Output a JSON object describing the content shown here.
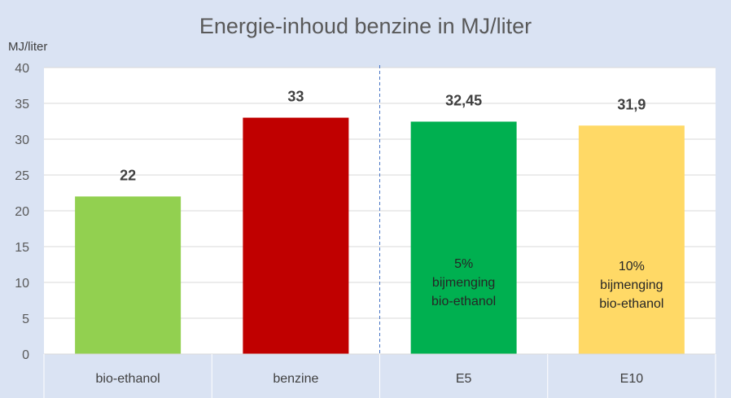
{
  "chart_data": {
    "type": "bar",
    "title": "Energie-inhoud benzine in MJ/liter",
    "ylabel": "MJ/liter",
    "xlabel": "",
    "ylim": [
      0,
      40
    ],
    "yticks": [
      0,
      5,
      10,
      15,
      20,
      25,
      30,
      35,
      40
    ],
    "grid": true,
    "legend": "none",
    "categories": [
      "bio-ethanol",
      "benzine",
      "E5",
      "E10"
    ],
    "values": [
      22,
      33,
      32.45,
      31.9
    ],
    "data_labels": [
      "22",
      "33",
      "32,45",
      "31,9"
    ],
    "colors": [
      "#92d050",
      "#c00000",
      "#00b050",
      "#ffd966"
    ],
    "annotations": [
      {
        "category": "E5",
        "lines": [
          "5%",
          "bijmenging",
          "bio-ethanol"
        ]
      },
      {
        "category": "E10",
        "lines": [
          "10%",
          "bijmenging",
          "bio-ethanol"
        ]
      }
    ],
    "divider_after": "benzine"
  }
}
